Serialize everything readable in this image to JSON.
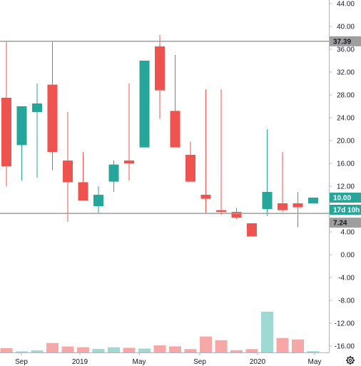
{
  "chart_data": {
    "type": "candlestick",
    "title": "",
    "xlabel": "",
    "ylabel": "",
    "ylim": [
      -17.6,
      45.6
    ],
    "y_ticks": [
      "-16.00",
      "-12.00",
      "-8.00",
      "-4.00",
      "0.00",
      "4.00",
      "8.00",
      "12.00",
      "16.00",
      "20.00",
      "24.00",
      "28.00",
      "32.00",
      "36.00",
      "40.00",
      "44.00"
    ],
    "x_ticks": [
      "Sep",
      "2019",
      "May",
      "Sep",
      "2020",
      "May"
    ],
    "grid": false,
    "legend": "none",
    "colors": {
      "up": "#26a69a",
      "down": "#ef5350",
      "volume_up": "#9ed9d3",
      "volume_down": "#f5a8a6",
      "hline": "#9e9e9e",
      "axis": "#b2b5be"
    },
    "candles": [
      {
        "period": "2018-07",
        "open": 27.5,
        "high": 37.3,
        "low": 12.0,
        "close": 15.5,
        "volume": 2.3
      },
      {
        "period": "2018-08",
        "open": 19.2,
        "high": 26.0,
        "low": 13.0,
        "close": 26.0,
        "volume": 0.6
      },
      {
        "period": "2018-09",
        "open": 25.0,
        "high": 30.0,
        "low": 13.5,
        "close": 26.5,
        "volume": 1.1
      },
      {
        "period": "2018-10",
        "open": 29.8,
        "high": 37.3,
        "low": 14.8,
        "close": 18.0,
        "volume": 5.1
      },
      {
        "period": "2018-11",
        "open": 16.5,
        "high": 25.0,
        "low": 5.8,
        "close": 12.7,
        "volume": 3.2
      },
      {
        "period": "2018-12",
        "open": 12.7,
        "high": 18.0,
        "low": 9.5,
        "close": 9.5,
        "volume": 2.8
      },
      {
        "period": "2019-01",
        "open": 8.5,
        "high": 12.0,
        "low": 7.3,
        "close": 10.5,
        "volume": 1.9
      },
      {
        "period": "2019-02",
        "open": 12.8,
        "high": 16.5,
        "low": 11.0,
        "close": 15.8,
        "volume": 2.8
      },
      {
        "period": "2019-03",
        "open": 16.5,
        "high": 30.0,
        "low": 13.0,
        "close": 16.0,
        "volume": 2.5
      },
      {
        "period": "2019-04",
        "open": 18.8,
        "high": 34.0,
        "low": 18.8,
        "close": 34.0,
        "volume": 2.1
      },
      {
        "period": "2019-05",
        "open": 36.5,
        "high": 38.5,
        "low": 23.8,
        "close": 28.8,
        "volume": 3.8
      },
      {
        "period": "2019-06",
        "open": 25.2,
        "high": 35.0,
        "low": 18.8,
        "close": 18.8,
        "volume": 3.3
      },
      {
        "period": "2019-07",
        "open": 17.5,
        "high": 19.8,
        "low": 12.8,
        "close": 12.8,
        "volume": 1.8
      },
      {
        "period": "2019-08",
        "open": 10.5,
        "high": 29.0,
        "low": 7.2,
        "close": 9.8,
        "volume": 8.6
      },
      {
        "period": "2019-09",
        "open": 7.8,
        "high": 29.0,
        "low": 7.0,
        "close": 7.5,
        "volume": 6.6
      },
      {
        "period": "2019-10",
        "open": 7.5,
        "high": 8.2,
        "low": 6.2,
        "close": 6.5,
        "volume": 1.2
      },
      {
        "period": "2019-11",
        "open": 5.5,
        "high": 5.5,
        "low": 3.2,
        "close": 3.2,
        "volume": 1.8
      },
      {
        "period": "2019-12",
        "open": 8.0,
        "high": 22.0,
        "low": 6.8,
        "close": 11.0,
        "volume": 22.0
      },
      {
        "period": "2020-01",
        "open": 9.0,
        "high": 18.0,
        "low": 7.5,
        "close": 7.8,
        "volume": 7.8
      },
      {
        "period": "2020-02",
        "open": 9.0,
        "high": 11.0,
        "low": 4.8,
        "close": 8.3,
        "volume": 7.0
      },
      {
        "period": "2020-03",
        "open": 9.0,
        "high": 10.0,
        "low": 9.0,
        "close": 10.0,
        "volume": 0.7
      }
    ],
    "horizontal_lines": [
      {
        "value": 37.39,
        "label": "37.39"
      },
      {
        "value": 7.24,
        "label": "7.24"
      }
    ],
    "last_price": {
      "value": 10.0,
      "label": "10.00",
      "countdown": "17d 10h"
    }
  }
}
